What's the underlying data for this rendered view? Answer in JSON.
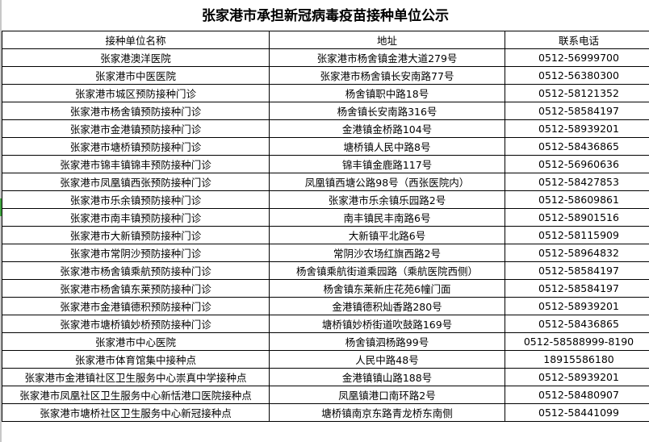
{
  "title": "张家港市承担新冠病毒疫苗接种单位公示",
  "columns": [
    "接种单位名称",
    "地址",
    "联系电话"
  ],
  "rows": [
    [
      "张家港澳洋医院",
      "张家港市杨舍镇金港大道279号",
      "0512-56999700"
    ],
    [
      "张家港市中医医院",
      "张家港市杨舍镇长安南路77号",
      "0512-56380300"
    ],
    [
      "张家港市城区预防接种门诊",
      "杨舍镇职中路18号",
      "0512-58121352"
    ],
    [
      "张家港市杨舍镇预防接种门诊",
      "杨舍镇长安南路316号",
      "0512-58584197"
    ],
    [
      "张家港市金港镇预防接种门诊",
      "金港镇金桥路104号",
      "0512-58939201"
    ],
    [
      "张家港市塘桥镇预防接种门诊",
      "塘桥镇人民中路8号",
      "0512-58436865"
    ],
    [
      "张家港市锦丰镇锦丰预防接种门诊",
      "锦丰镇金鹿路117号",
      "0512-56960636"
    ],
    [
      "张家港市凤凰镇西张预防接种门诊",
      "凤凰镇西塘公路98号（西张医院内）",
      "0512-58427853"
    ],
    [
      "张家港市乐余镇预防接种门诊",
      "张家港市乐余镇乐园路2号",
      "0512-58609861"
    ],
    [
      "张家港市南丰镇预防接种门诊",
      "南丰镇民丰南路6号",
      "0512-58901516"
    ],
    [
      "张家港市大新镇预防接种门诊",
      "大新镇平北路6号",
      "0512-58115909"
    ],
    [
      "张家港市常阴沙预防接种门诊",
      "常阴沙农场红旗西路2号",
      "0512-58964832"
    ],
    [
      "张家港市杨舍镇乘航预防接种门诊",
      "杨舍镇乘航街道乘园路（乘航医院西侧）",
      "0512-58584197"
    ],
    [
      "张家港市杨舍镇东莱预防接种门诊",
      "杨舍镇东莱新庄花苑6幢门面",
      "0512-58584197"
    ],
    [
      "张家港市金港镇德积预防接种门诊",
      "金港镇德积灿香路280号",
      "0512-58939201"
    ],
    [
      "张家港市塘桥镇妙桥预防接种门诊",
      "塘桥镇妙桥街道吹鼓路169号",
      "0512-58436865"
    ],
    [
      "张家港市中心医院",
      "杨舍镇泗杨路99号",
      "0512-58588999-8190"
    ],
    [
      "张家港市体育馆集中接种点",
      "人民中路48号",
      "18915586180"
    ],
    [
      "张家港市金港镇社区卫生服务中心崇真中学接种点",
      "金港镇镇山路188号",
      "0512-58939201"
    ],
    [
      "张家港市凤凰社区卫生服务中心新恬港口医院接种点",
      "凤凰镇港口南环路2号",
      "0512-58480907"
    ],
    [
      "张家港市塘桥社区卫生服务中心新冠接种点",
      "塘桥镇南京东路青龙桥东南侧",
      "0512-58441099"
    ]
  ]
}
